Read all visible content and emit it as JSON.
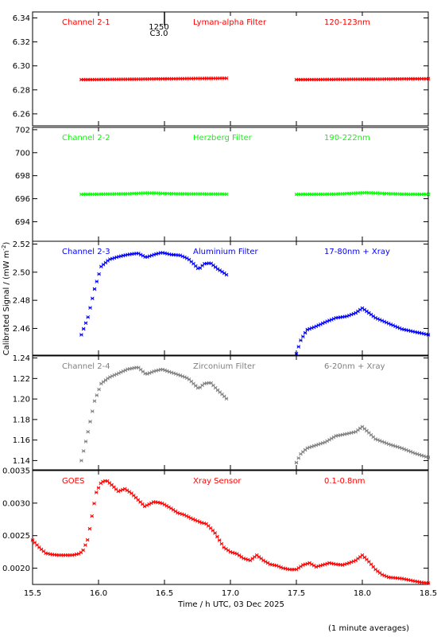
{
  "chart_data": {
    "type": "scatter",
    "x_title": "Time / h UTC, 03 Dec 2025",
    "y_title": "Calibrated Signal / (mW m",
    "y_title_sup": "-2",
    "y_title_end": ")",
    "footnote": "(1 minute averages)",
    "xlim": [
      15.5,
      18.5
    ],
    "x_ticks": [
      15.5,
      16.0,
      16.5,
      17.0,
      17.5,
      18.0,
      18.5
    ],
    "x_tick_labels": [
      "15.5",
      "16.0",
      "16.5",
      "17.0",
      "17.5",
      "18.0",
      "18.5"
    ],
    "event_marker": {
      "x": 16.5,
      "label_top": "1250",
      "label_bottom": "C3.0"
    },
    "panels": [
      {
        "name": "Channel 2-1",
        "filter": "Lyman-alpha Filter",
        "band": "120-123nm",
        "color": "#ff0000",
        "ylim": [
          6.25,
          6.345
        ],
        "y_ticks": [
          6.26,
          6.28,
          6.3,
          6.32,
          6.34
        ],
        "y_tick_labels": [
          "6.26",
          "6.28",
          "6.30",
          "6.32",
          "6.34"
        ],
        "segments": [
          {
            "x": [
              15.87,
              16.2,
              16.5,
              16.8,
              16.98
            ],
            "y": [
              6.2885,
              6.2888,
              6.2892,
              6.2895,
              6.2897
            ]
          },
          {
            "x": [
              17.5,
              17.8,
              18.1,
              18.3,
              18.5
            ],
            "y": [
              6.2885,
              6.2887,
              6.2889,
              6.2891,
              6.2893
            ]
          }
        ]
      },
      {
        "name": "Channel 2-2",
        "filter": "Herzberg Filter",
        "band": "190-222nm",
        "color": "#00ff00",
        "ylim": [
          692.3,
          702.2
        ],
        "y_ticks": [
          694,
          696,
          698,
          700,
          702
        ],
        "y_tick_labels": [
          "694",
          "696",
          "698",
          "700",
          "702"
        ],
        "segments": [
          {
            "x": [
              15.87,
              16.2,
              16.38,
              16.6,
              16.98
            ],
            "y": [
              696.38,
              696.42,
              696.5,
              696.42,
              696.4
            ]
          },
          {
            "x": [
              17.5,
              17.8,
              18.02,
              18.3,
              18.5
            ],
            "y": [
              696.38,
              696.4,
              696.52,
              696.4,
              696.38
            ]
          }
        ]
      },
      {
        "name": "Channel 2-3",
        "filter": "Aluminium Filter",
        "band": "17-80nm + Xray",
        "color": "#0000ff",
        "ylim": [
          2.441,
          2.522
        ],
        "y_ticks": [
          2.46,
          2.48,
          2.5,
          2.52
        ],
        "y_tick_labels": [
          "2.46",
          "2.48",
          "2.50",
          "2.52"
        ],
        "segments": [
          {
            "x": [
              15.87,
              15.92,
              15.97,
              16.02,
              16.08,
              16.15,
              16.22,
              16.3,
              16.36,
              16.42,
              16.48,
              16.55,
              16.62,
              16.68,
              16.72,
              16.76,
              16.8,
              16.85,
              16.9,
              16.95,
              16.98
            ],
            "y": [
              2.4555,
              2.468,
              2.488,
              2.504,
              2.509,
              2.511,
              2.5125,
              2.5135,
              2.5105,
              2.5125,
              2.514,
              2.5125,
              2.512,
              2.5095,
              2.506,
              2.502,
              2.506,
              2.5065,
              2.5025,
              2.4995,
              2.4975
            ]
          },
          {
            "x": [
              17.5,
              17.53,
              17.58,
              17.65,
              17.72,
              17.8,
              17.88,
              17.95,
              18.0,
              18.05,
              18.1,
              18.2,
              18.3,
              18.4,
              18.5
            ],
            "y": [
              2.442,
              2.451,
              2.459,
              2.4615,
              2.4645,
              2.4675,
              2.4685,
              2.471,
              2.4745,
              2.471,
              2.4675,
              2.4635,
              2.4595,
              2.4575,
              2.4555
            ]
          }
        ]
      },
      {
        "name": "Channel 2-4",
        "filter": "Zirconium Filter",
        "band": "6-20nm + Xray",
        "color": "#808080",
        "ylim": [
          1.131,
          1.242
        ],
        "y_ticks": [
          1.14,
          1.16,
          1.18,
          1.2,
          1.22,
          1.24
        ],
        "y_tick_labels": [
          "1.14",
          "1.16",
          "1.18",
          "1.20",
          "1.22",
          "1.24"
        ],
        "segments": [
          {
            "x": [
              15.87,
              15.92,
              15.97,
              16.02,
              16.08,
              16.15,
              16.22,
              16.3,
              16.36,
              16.42,
              16.48,
              16.55,
              16.62,
              16.68,
              16.72,
              16.76,
              16.8,
              16.85,
              16.9,
              16.95,
              16.98
            ],
            "y": [
              1.14,
              1.168,
              1.198,
              1.215,
              1.221,
              1.225,
              1.229,
              1.231,
              1.224,
              1.227,
              1.229,
              1.226,
              1.223,
              1.22,
              1.215,
              1.21,
              1.215,
              1.216,
              1.209,
              1.203,
              1.199
            ]
          },
          {
            "x": [
              17.5,
              17.53,
              17.58,
              17.65,
              17.72,
              17.8,
              17.88,
              17.95,
              18.0,
              18.05,
              18.1,
              18.2,
              18.3,
              18.4,
              18.5
            ],
            "y": [
              1.138,
              1.146,
              1.152,
              1.155,
              1.158,
              1.164,
              1.166,
              1.168,
              1.173,
              1.167,
              1.161,
              1.156,
              1.152,
              1.147,
              1.143
            ]
          }
        ]
      },
      {
        "name": "GOES",
        "filter": "Xray Sensor",
        "band": "0.1-0.8nm",
        "color": "#ff0000",
        "ylim": [
          0.00175,
          0.0035
        ],
        "y_ticks": [
          0.002,
          0.0025,
          0.003,
          0.0035
        ],
        "y_tick_labels": [
          "0.0020",
          "0.0025",
          "0.0030",
          "0.0035"
        ],
        "segments": [
          {
            "x": [
              15.5,
              15.55,
              15.6,
              15.65,
              15.7,
              15.75,
              15.8,
              15.85,
              15.88,
              15.92,
              15.95,
              15.98,
              16.02,
              16.06,
              16.1,
              16.15,
              16.2,
              16.25,
              16.3,
              16.35,
              16.42,
              16.48,
              16.55,
              16.6,
              16.65,
              16.72,
              16.78,
              16.82,
              16.88,
              16.95,
              17.0,
              17.05,
              17.1,
              17.15,
              17.2,
              17.25,
              17.3,
              17.35,
              17.4,
              17.45,
              17.5,
              17.55,
              17.6,
              17.65,
              17.7,
              17.75,
              17.8,
              17.85,
              17.9,
              17.95,
              18.0,
              18.05,
              18.1,
              18.15,
              18.2,
              18.25,
              18.3,
              18.35,
              18.4,
              18.45,
              18.5
            ],
            "y": [
              0.00243,
              0.00232,
              0.00223,
              0.00221,
              0.0022,
              0.0022,
              0.0022,
              0.00222,
              0.00226,
              0.00245,
              0.0028,
              0.00315,
              0.00332,
              0.00335,
              0.00328,
              0.00318,
              0.00322,
              0.00315,
              0.00305,
              0.00295,
              0.00302,
              0.003,
              0.00292,
              0.00285,
              0.00282,
              0.00275,
              0.0027,
              0.00268,
              0.00255,
              0.00232,
              0.00225,
              0.00222,
              0.00215,
              0.00212,
              0.0022,
              0.00212,
              0.00206,
              0.00204,
              0.002,
              0.00198,
              0.00198,
              0.00205,
              0.00208,
              0.00202,
              0.00205,
              0.00208,
              0.00206,
              0.00205,
              0.00208,
              0.00212,
              0.0022,
              0.0021,
              0.00198,
              0.0019,
              0.00186,
              0.00185,
              0.00184,
              0.00182,
              0.0018,
              0.00178,
              0.00177
            ]
          }
        ]
      }
    ]
  }
}
